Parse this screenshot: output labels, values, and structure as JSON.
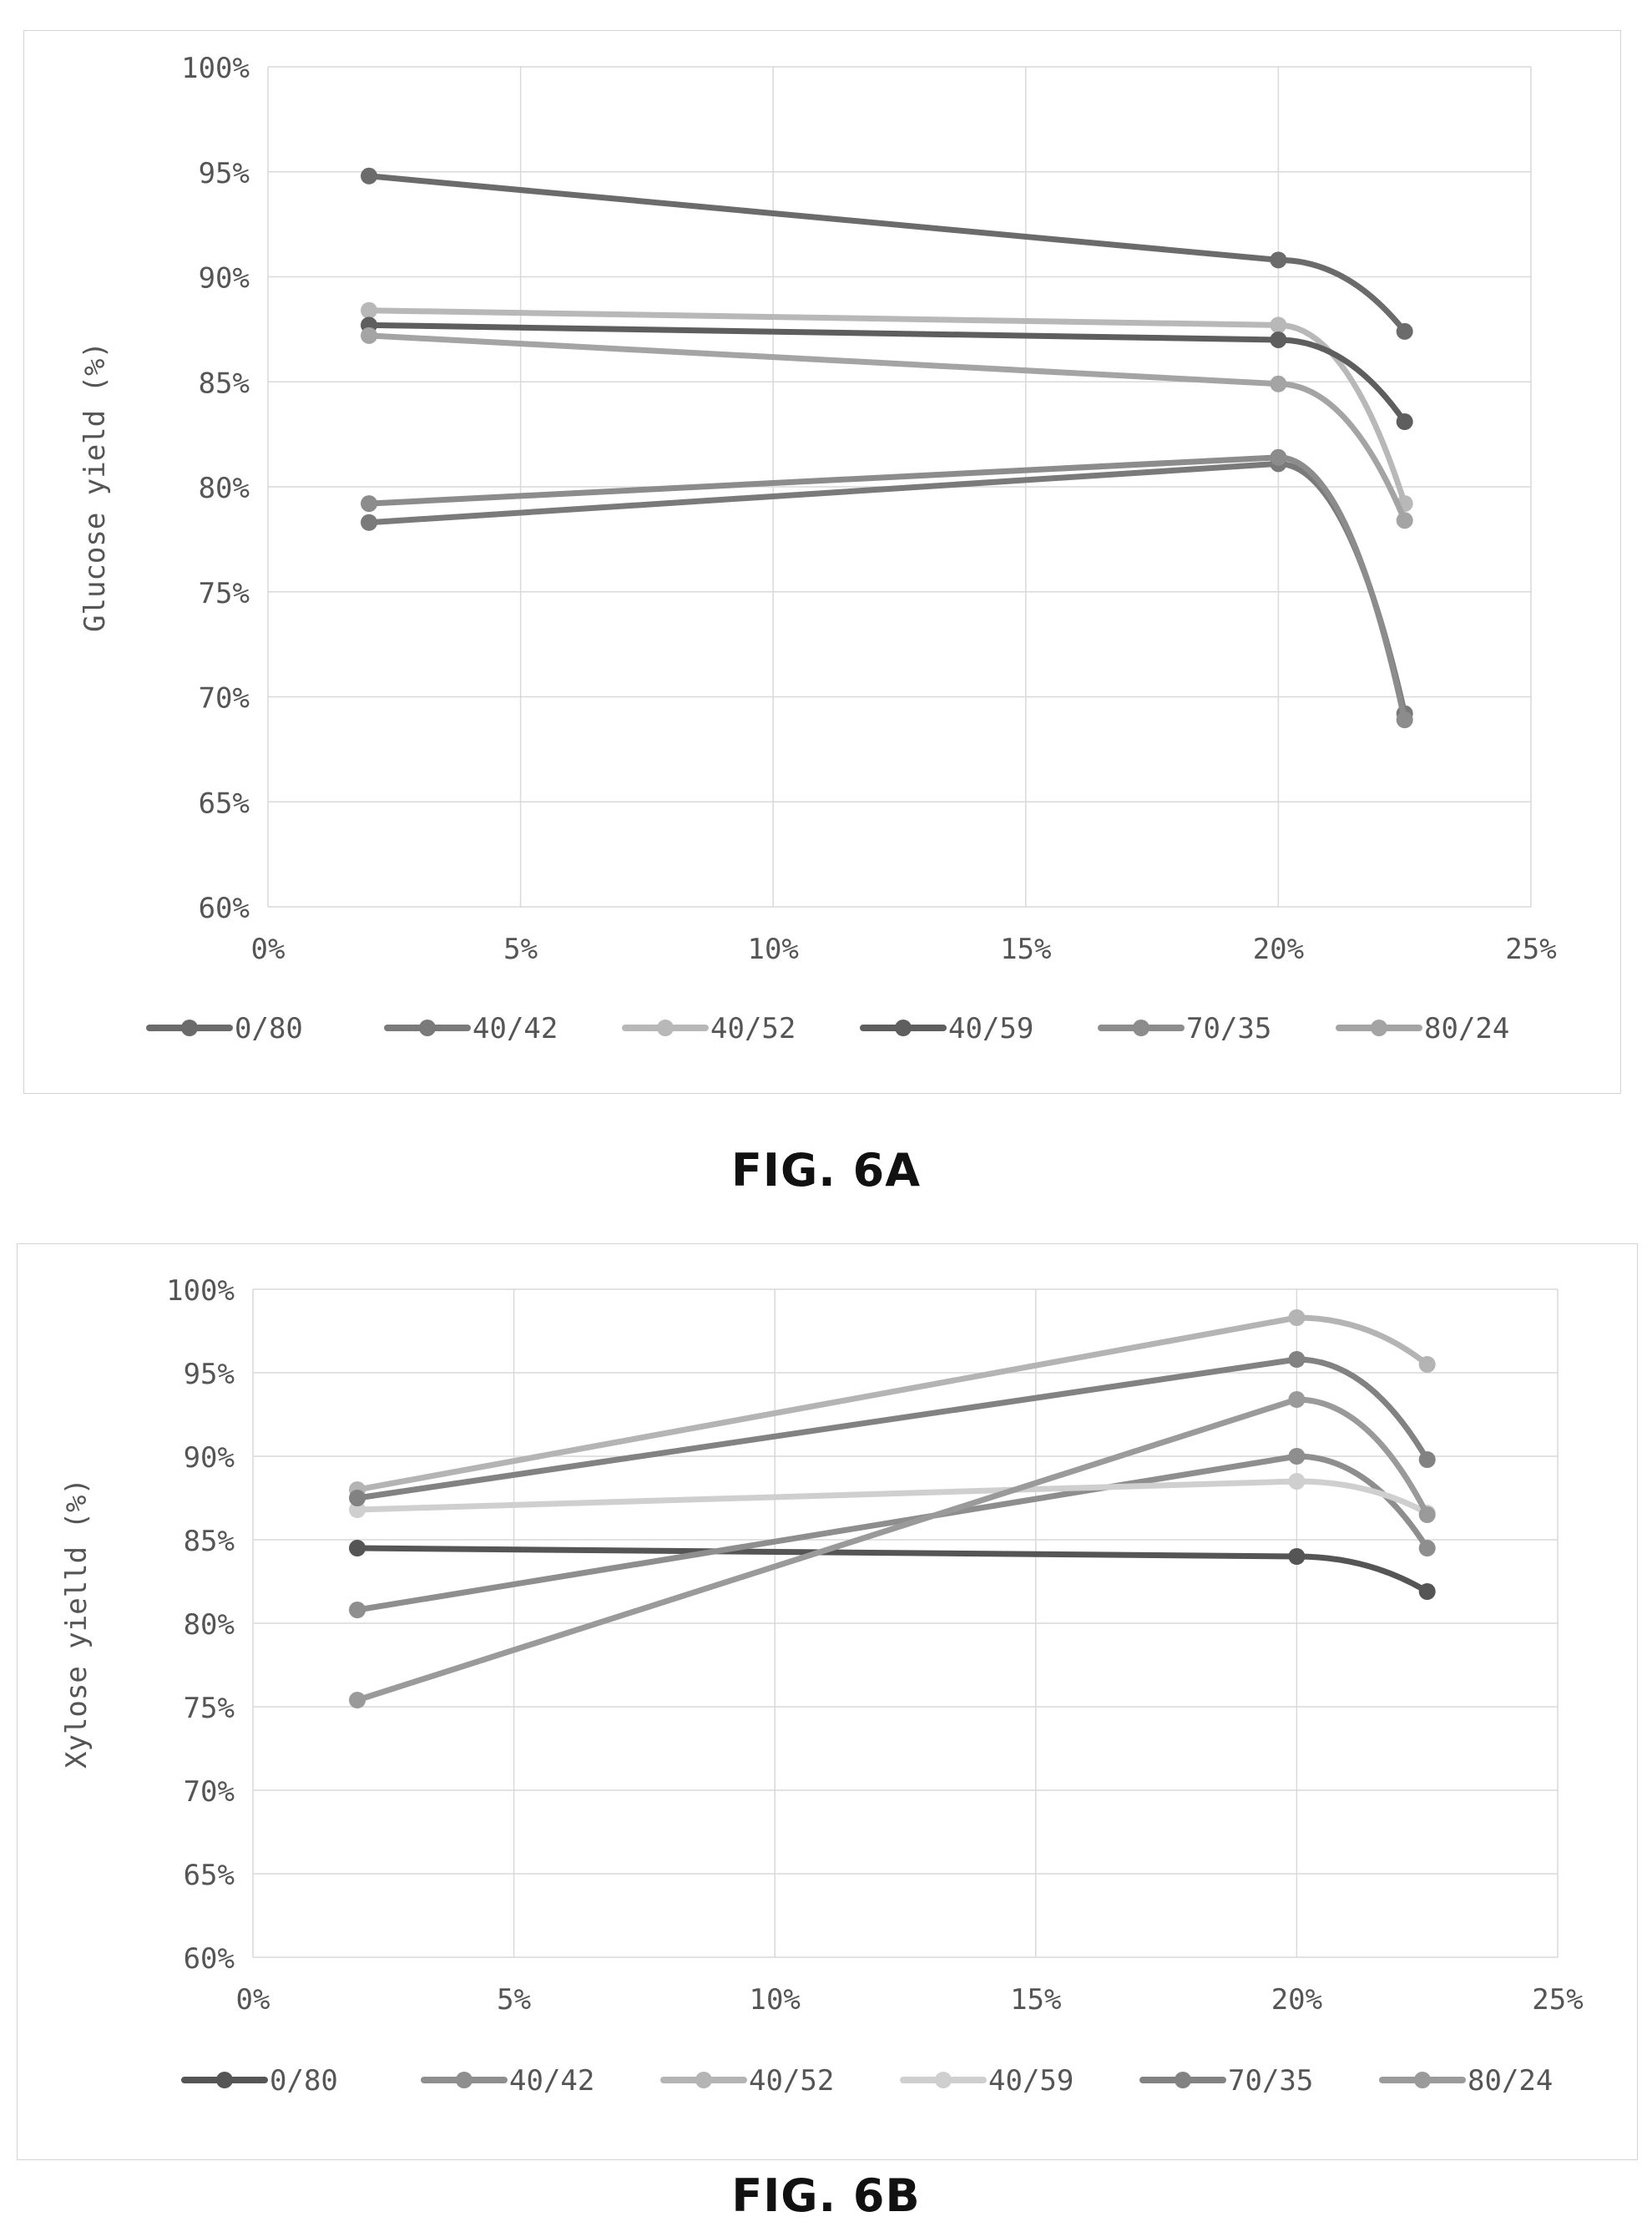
{
  "figures": {
    "a": {
      "caption": "FIG. 6A"
    },
    "b": {
      "caption": "FIG. 6B"
    }
  },
  "chart_data": [
    {
      "type": "line",
      "title": "",
      "xlabel": "",
      "ylabel": "Glucose yield (%)",
      "xlim": [
        0,
        0.25
      ],
      "ylim": [
        0.6,
        1.0
      ],
      "x_ticks": [
        "0%",
        "5%",
        "10%",
        "15%",
        "20%",
        "25%"
      ],
      "y_ticks": [
        "100%",
        "95%",
        "90%",
        "85%",
        "80%",
        "75%",
        "70%",
        "65%",
        "60%"
      ],
      "grid": true,
      "smooth": true,
      "legend_position": "bottom",
      "x": [
        0.02,
        0.2,
        0.225
      ],
      "series": [
        {
          "name": "0/80",
          "color": "#6b6b6b",
          "values": [
            0.948,
            0.908,
            0.874
          ]
        },
        {
          "name": "40/42",
          "color": "#7a7a7a",
          "values": [
            0.783,
            0.811,
            0.692
          ]
        },
        {
          "name": "40/52",
          "color": "#b8b8b8",
          "values": [
            0.884,
            0.877,
            0.792
          ]
        },
        {
          "name": "40/59",
          "color": "#5e5e5e",
          "values": [
            0.877,
            0.87,
            0.831
          ]
        },
        {
          "name": "70/35",
          "color": "#8c8c8c",
          "values": [
            0.792,
            0.814,
            0.689
          ]
        },
        {
          "name": "80/24",
          "color": "#a4a4a4",
          "values": [
            0.872,
            0.849,
            0.784
          ]
        }
      ]
    },
    {
      "type": "line",
      "title": "",
      "xlabel": "",
      "ylabel": "Xylose yielld (%)",
      "xlim": [
        0,
        0.25
      ],
      "ylim": [
        0.6,
        1.0
      ],
      "x_ticks": [
        "0%",
        "5%",
        "10%",
        "15%",
        "20%",
        "25%"
      ],
      "y_ticks": [
        "100%",
        "95%",
        "90%",
        "85%",
        "80%",
        "75%",
        "70%",
        "65%",
        "60%"
      ],
      "grid": true,
      "smooth": true,
      "legend_position": "bottom",
      "x": [
        0.02,
        0.2,
        0.225
      ],
      "series": [
        {
          "name": "0/80",
          "color": "#555555",
          "values": [
            0.845,
            0.84,
            0.819
          ]
        },
        {
          "name": "40/42",
          "color": "#8e8e8e",
          "values": [
            0.808,
            0.9,
            0.845
          ]
        },
        {
          "name": "40/52",
          "color": "#b4b4b4",
          "values": [
            0.88,
            0.983,
            0.955
          ]
        },
        {
          "name": "40/59",
          "color": "#cfcfcf",
          "values": [
            0.868,
            0.885,
            0.866
          ]
        },
        {
          "name": "70/35",
          "color": "#828282",
          "values": [
            0.875,
            0.958,
            0.898
          ]
        },
        {
          "name": "80/24",
          "color": "#9a9a9a",
          "values": [
            0.754,
            0.934,
            0.865
          ]
        }
      ]
    }
  ]
}
